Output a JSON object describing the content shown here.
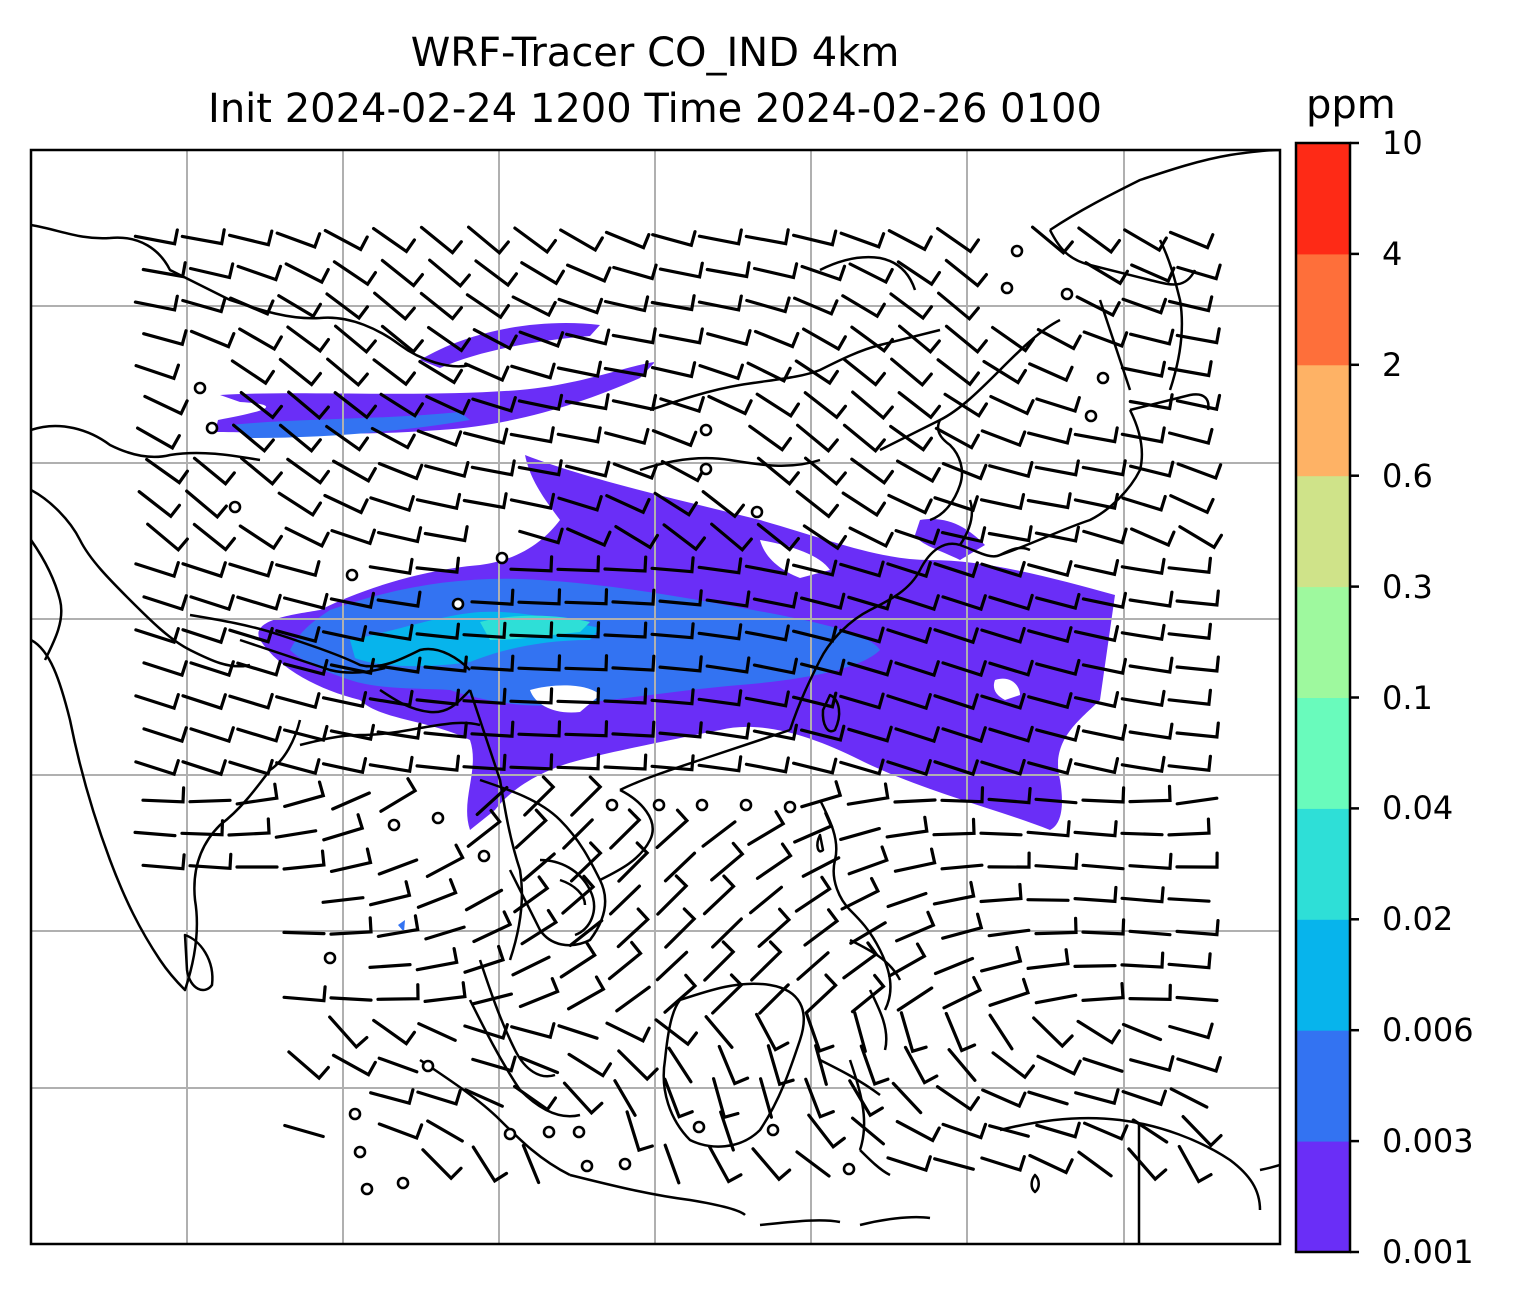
{
  "title": {
    "line1": "WRF-Tracer CO_IND 4km",
    "line2": "Init 2024-02-24 1200 Time 2024-02-26 0100"
  },
  "colorbar": {
    "unit": "ppm",
    "levels": [
      "0.001",
      "0.003",
      "0.006",
      "0.02",
      "0.04",
      "0.1",
      "0.3",
      "0.6",
      "2",
      "4",
      "10"
    ],
    "colors": [
      "#6a2ef7",
      "#3373f2",
      "#07b4ec",
      "#2edfd7",
      "#69fbbc",
      "#9ef99e",
      "#cfe389",
      "#feb265",
      "#fe6f3a",
      "#fe2a16"
    ]
  },
  "map": {
    "gridlines": true,
    "coastline_color": "#000000",
    "gridline_color": "#b0b0b0",
    "overlays": [
      "tracer-concentration-shading",
      "wind-barbs",
      "calm-wind-circles",
      "coastlines"
    ]
  }
}
